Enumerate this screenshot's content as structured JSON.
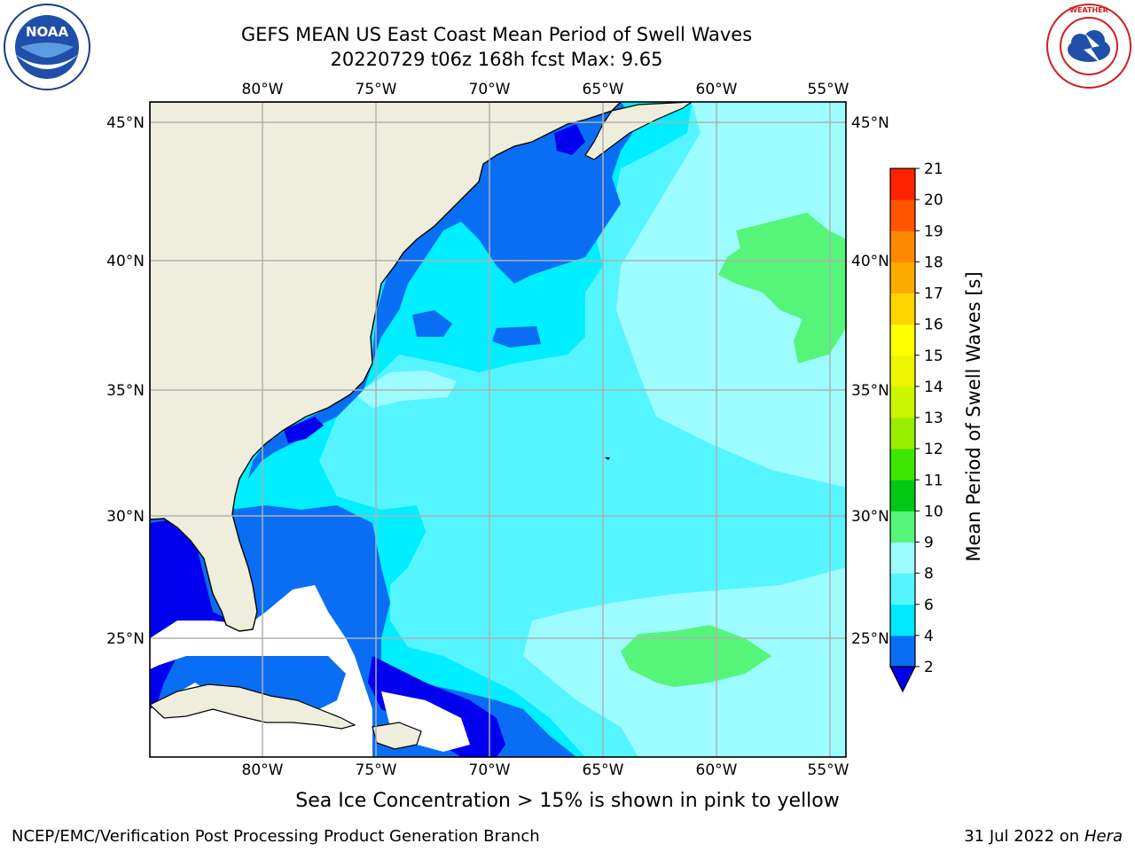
{
  "header": {
    "title_line1": "GEFS MEAN US East Coast Mean Period of Swell Waves",
    "title_line2": "20220729 t06z 168h fcst   Max: 9.65"
  },
  "map": {
    "lon_labels": [
      "80°W",
      "75°W",
      "70°W",
      "65°W",
      "60°W",
      "55°W"
    ],
    "lat_labels": [
      "45°N",
      "40°N",
      "35°N",
      "30°N",
      "25°N"
    ]
  },
  "colorbar": {
    "label": "Mean Period of Swell Waves [s]",
    "ticks": [
      "2",
      "4",
      "6",
      "8",
      "9",
      "10",
      "11",
      "12",
      "13",
      "14",
      "15",
      "16",
      "17",
      "18",
      "19",
      "20",
      "21"
    ],
    "colors": [
      "#0000ee",
      "#0a6ef5",
      "#00e8ff",
      "#55f5ff",
      "#9dfcff",
      "#55f57a",
      "#00c814",
      "#3ee600",
      "#99ee00",
      "#ccf500",
      "#eef500",
      "#ffff00",
      "#ffd500",
      "#ffaa00",
      "#ff8800",
      "#ff5500",
      "#ff2200",
      "#ff0000"
    ]
  },
  "palette": {
    "land": "#efeedc",
    "grid": "#b0b0b0",
    "light_cyan": "#9dfcff",
    "cyan": "#55f5ff",
    "bright_cyan": "#00eeff",
    "blue": "#0a6ef5",
    "dark_blue": "#0000ee",
    "green": "#55f57a"
  },
  "footer": {
    "sea_ice_note": "Sea Ice Concentration > 15% is shown in pink to yellow",
    "credit": "NCEP/EMC/Verification Post Processing Product Generation Branch",
    "date": "31 Jul 2022 on",
    "host": "Hera"
  },
  "logos": {
    "noaa_text": "NOAA",
    "nws_text": "NATIONAL WEATHER SERVICE"
  }
}
